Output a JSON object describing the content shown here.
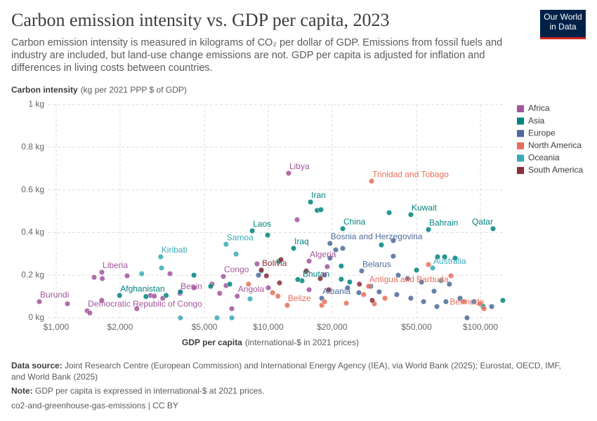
{
  "logo": "Our World in Data",
  "chart_data": {
    "type": "scatter",
    "title": "Carbon emission intensity vs. GDP per capita, 2023",
    "subtitle": "Carbon emission intensity is measured in kilograms of CO₂ per dollar of GDP. Emissions from fossil fuels and industry are included, but land-use change emissions are not. GDP per capita is adjusted for inflation and differences in living costs between countries.",
    "y_label": "Carbon intensity",
    "y_label_unit": "(kg per 2021 PPP $ of GDP)",
    "x_label": "GDP per capita",
    "x_label_unit": "(international-$ in 2021 prices)",
    "x_log": true,
    "grid": true,
    "legend_position": "right",
    "xlim": [
      814,
      129600
    ],
    "xticks": [
      {
        "value": 1000,
        "label": "$1,000"
      },
      {
        "value": 2000,
        "label": "$2,000"
      },
      {
        "value": 5000,
        "label": "$5,000"
      },
      {
        "value": 10000,
        "label": "$10,000"
      },
      {
        "value": 20000,
        "label": "$20,000"
      },
      {
        "value": 50000,
        "label": "$50,000"
      },
      {
        "value": 100000,
        "label": "$100,000"
      }
    ],
    "ylim": [
      0,
      1
    ],
    "yticks": [
      {
        "value": 0,
        "label": "0 kg"
      },
      {
        "value": 0.2,
        "label": "0.2 kg"
      },
      {
        "value": 0.4,
        "label": "0.4 kg"
      },
      {
        "value": 0.6,
        "label": "0.6 kg"
      },
      {
        "value": 0.8,
        "label": "0.8 kg"
      },
      {
        "value": 1,
        "label": "1 kg"
      }
    ],
    "series": [
      {
        "name": "Africa",
        "color": "#a2559c",
        "x": [
          12470,
          833,
          1130,
          1400,
          1440,
          1642,
          1510,
          1650,
          2160,
          1640,
          3830,
          6140,
          7140,
          15570,
          13680,
          3440,
          2780,
          2900,
          3180,
          4460,
          5430,
          6320,
          8850,
          10000,
          15570,
          18970,
          18400,
          6730,
          5900,
          2400
        ],
        "values": [
          0.678,
          0.076,
          0.066,
          0.033,
          0.023,
          0.214,
          0.19,
          0.184,
          0.197,
          0.082,
          0.115,
          0.194,
          0.102,
          0.266,
          0.46,
          0.207,
          0.105,
          0.102,
          0.092,
          0.141,
          0.158,
          0.151,
          0.253,
          0.141,
          0.132,
          0.24,
          0.201,
          0.043,
          0.115,
          0.043
        ],
        "labels": [
          "Libya",
          "Burundi",
          null,
          "Democratic Republic of Congo",
          null,
          "Liberia",
          null,
          null,
          null,
          null,
          "Benin",
          "Congo",
          "Angola",
          "Algeria",
          null,
          null,
          null,
          null,
          null,
          null,
          null,
          null,
          null,
          null,
          null,
          null,
          null,
          null,
          null,
          null
        ]
      },
      {
        "name": "Asia",
        "color": "#00847e",
        "x": [
          15820,
          17000,
          17700,
          8400,
          9930,
          13160,
          22440,
          46990,
          37150,
          56880,
          114700,
          14420,
          1990,
          34130,
          4460,
          5350,
          6580,
          9270,
          11230,
          13770,
          22080,
          22080,
          24200,
          50000,
          62800,
          67800,
          76000,
          127600,
          103000,
          2650,
          3850,
          3300
        ],
        "values": [
          0.543,
          0.504,
          0.507,
          0.408,
          0.388,
          0.326,
          0.418,
          0.484,
          0.493,
          0.414,
          0.418,
          0.174,
          0.105,
          0.342,
          0.2,
          0.148,
          0.158,
          0.22,
          0.266,
          0.18,
          0.243,
          0.181,
          0.168,
          0.224,
          0.286,
          0.286,
          0.28,
          0.082,
          0.053,
          0.1,
          0.122,
          0.105
        ],
        "labels": [
          "Iran",
          null,
          null,
          "Laos",
          null,
          "Iraq",
          "China",
          "Kuwait",
          null,
          "Bahrain",
          "Qatar",
          "Bhutan",
          "Afghanistan",
          null,
          null,
          null,
          null,
          null,
          null,
          null,
          null,
          null,
          null,
          null,
          null,
          null,
          null,
          null,
          null,
          null,
          null,
          null
        ]
      },
      {
        "name": "Europe",
        "color": "#4c6a9c",
        "x": [
          19530,
          27560,
          17870,
          20800,
          22440,
          38840,
          38840,
          41000,
          45300,
          52780,
          60450,
          68800,
          80200,
          93300,
          113000,
          33340,
          30420,
          26730,
          23660,
          40350,
          46990,
          53960,
          62350,
          71430,
          86500,
          19530,
          8990
        ],
        "values": [
          0.349,
          0.22,
          0.092,
          0.319,
          0.326,
          0.362,
          0.289,
          0.2,
          0.184,
          0.168,
          0.125,
          0.076,
          0.092,
          0.076,
          0.053,
          0.122,
          0.148,
          0.118,
          0.141,
          0.109,
          0.092,
          0.076,
          0.053,
          0.158,
          0,
          0.28,
          0.2
        ],
        "labels": [
          "Bosnia and Herzegovina",
          "Belarus",
          "Albania",
          null,
          null,
          null,
          null,
          null,
          null,
          null,
          null,
          null,
          null,
          null,
          null,
          null,
          null,
          null,
          null,
          null,
          null,
          null,
          null,
          null,
          null,
          null,
          null
        ]
      },
      {
        "name": "North America",
        "color": "#e56e5a",
        "x": [
          30690,
          29730,
          12280,
          104000,
          56880,
          72600,
          10480,
          11100,
          17870,
          18400,
          23330,
          28180,
          31620,
          35470,
          83400,
          99300,
          8070
        ],
        "values": [
          0.641,
          0.148,
          0.059,
          0.043,
          0.25,
          0.197,
          0.118,
          0.102,
          0.059,
          0.076,
          0.069,
          0.109,
          0.066,
          0.092,
          0.076,
          0.066,
          0.158
        ],
        "labels": [
          "Trinidad and Tobago",
          "Antigua and Barbuda",
          "Belize",
          "Bermuda",
          null,
          null,
          null,
          null,
          null,
          null,
          null,
          null,
          null,
          null,
          null,
          null,
          null
        ]
      },
      {
        "name": "Oceania",
        "color": "#38aaba",
        "x": [
          3110,
          6320,
          59570,
          7050,
          2530,
          3140,
          3850,
          5730,
          6730,
          8200,
          65300
        ],
        "values": [
          0.286,
          0.345,
          0.234,
          0.299,
          0.207,
          0.234,
          0,
          0,
          0,
          0.089,
          0.174
        ],
        "labels": [
          "Kiribati",
          "Samoa",
          "Australia",
          null,
          null,
          null,
          null,
          null,
          null,
          null,
          null
        ]
      },
      {
        "name": "South America",
        "color": "#883039",
        "x": [
          9270,
          9800,
          11300,
          15100,
          17580,
          19280,
          26900,
          30900,
          11480
        ],
        "values": [
          0.224,
          0.197,
          0.164,
          0.22,
          0.184,
          0.132,
          0.158,
          0.082,
          0.273
        ],
        "labels": [
          "Bolivia",
          null,
          null,
          null,
          null,
          null,
          null,
          null,
          null
        ]
      }
    ],
    "source_label": "Data source:",
    "source": "Joint Research Centre (European Commission) and International Energy Agency (IEA), via World Bank (2025); Eurostat, OECD, IMF, and World Bank (2025)",
    "note_label": "Note:",
    "note": "GDP per capita is expressed in international-$ at 2021 prices.",
    "footer": "co2-and-greenhouse-gas-emissions | CC BY"
  }
}
